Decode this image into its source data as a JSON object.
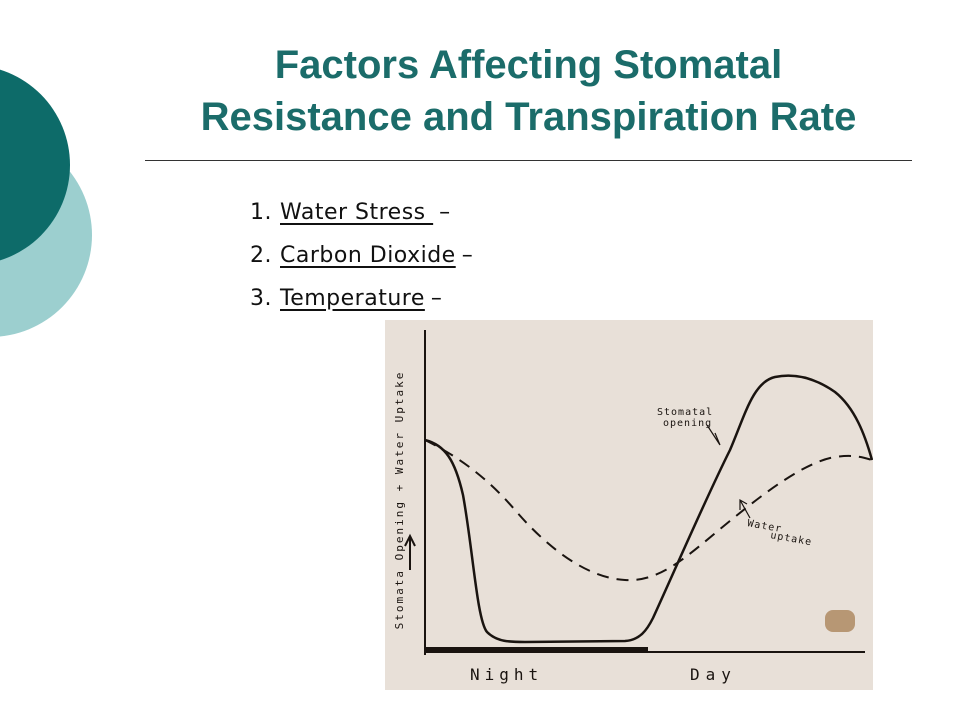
{
  "header": {
    "title_lines": [
      "Factors Affecting Stomatal",
      "Resistance and Transpiration Rate"
    ]
  },
  "items": [
    {
      "number": "1.",
      "label": "Water Stress ",
      "dash": "–"
    },
    {
      "number": "2.",
      "label": "Carbon Dioxide",
      "dash": "–"
    },
    {
      "number": "3.",
      "label": "Temperature",
      "dash": "–"
    }
  ],
  "figure": {
    "y_label": "Stomata Opening + Water Uptake",
    "stomatal_label": [
      "Stomatal",
      "opening"
    ],
    "water_label": [
      "Water",
      "uptake"
    ],
    "night_label": "Night",
    "day_label": "Day"
  }
}
